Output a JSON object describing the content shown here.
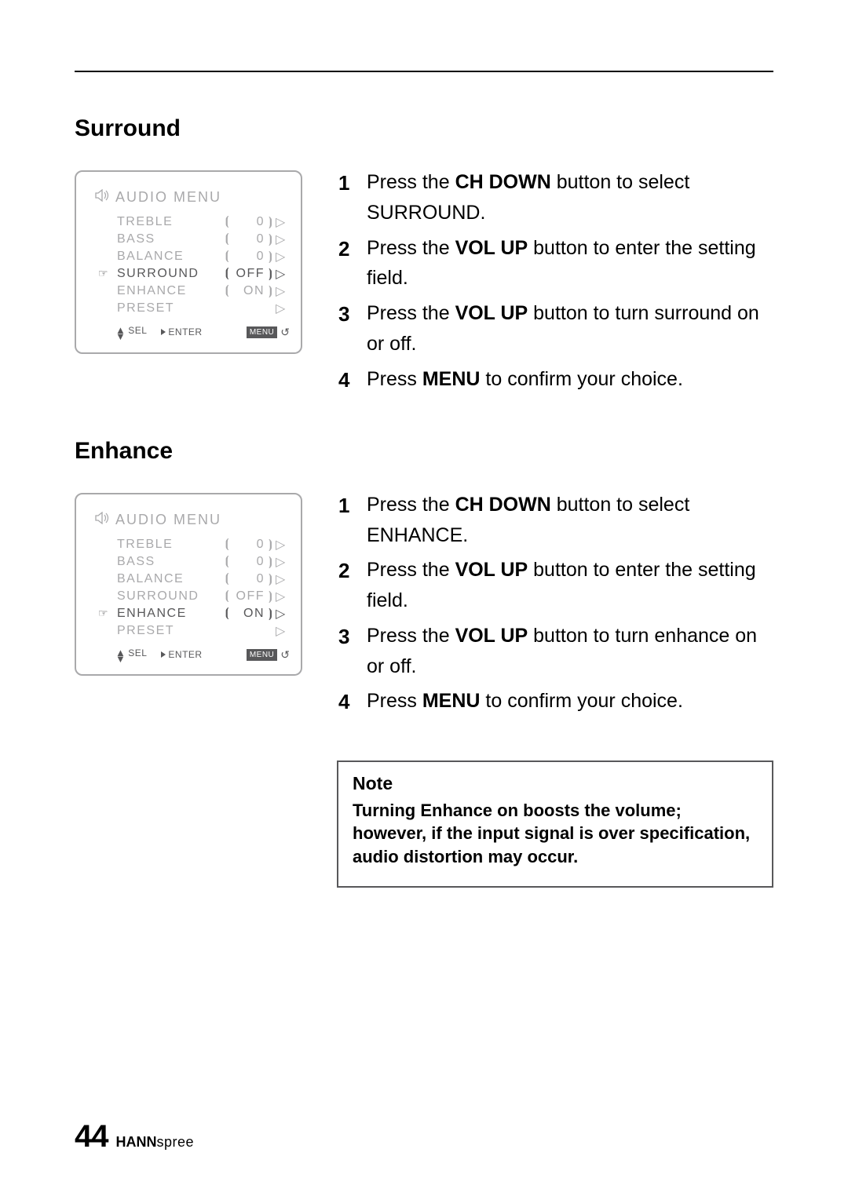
{
  "page": {
    "number": "44",
    "brand_bold": "HANN",
    "brand_light": "spree"
  },
  "colors": {
    "text": "#000000",
    "muted": "#a9a9ab",
    "dark": "#58585a",
    "menu_chip_bg": "#58585a",
    "menu_chip_fg": "#ffffff",
    "box_border": "#a9a9ab",
    "note_border": "#58585a",
    "bg": "#ffffff"
  },
  "surround": {
    "title": "Surround",
    "osd": {
      "title": "AUDIO  MENU",
      "rows": [
        {
          "label": "TREBLE",
          "value": "0",
          "active": false,
          "pointer": false,
          "showValue": true
        },
        {
          "label": "BASS",
          "value": "0",
          "active": false,
          "pointer": false,
          "showValue": true
        },
        {
          "label": "BALANCE",
          "value": "0",
          "active": false,
          "pointer": false,
          "showValue": true
        },
        {
          "label": "SURROUND",
          "value": "OFF",
          "active": true,
          "pointer": true,
          "showValue": true
        },
        {
          "label": "ENHANCE",
          "value": "ON",
          "active": false,
          "pointer": false,
          "showValue": true
        },
        {
          "label": "PRESET",
          "value": "",
          "active": false,
          "pointer": false,
          "showValue": false
        }
      ],
      "footer": {
        "sel": "SEL",
        "enter": "ENTER",
        "menu": "MENU"
      }
    },
    "steps": [
      {
        "n": "1",
        "pre": "Press the ",
        "bold": "CH DOWN",
        "post": " button to select SURROUND."
      },
      {
        "n": "2",
        "pre": "Press the ",
        "bold": "VOL UP",
        "post": " button to enter the setting field."
      },
      {
        "n": "3",
        "pre": "Press the ",
        "bold": "VOL UP",
        "post": " button to turn surround on or off."
      },
      {
        "n": "4",
        "pre": "Press ",
        "bold": "MENU",
        "post": " to confirm your choice."
      }
    ]
  },
  "enhance": {
    "title": "Enhance",
    "osd": {
      "title": "AUDIO  MENU",
      "rows": [
        {
          "label": "TREBLE",
          "value": "0",
          "active": false,
          "pointer": false,
          "showValue": true
        },
        {
          "label": "BASS",
          "value": "0",
          "active": false,
          "pointer": false,
          "showValue": true
        },
        {
          "label": "BALANCE",
          "value": "0",
          "active": false,
          "pointer": false,
          "showValue": true
        },
        {
          "label": "SURROUND",
          "value": "OFF",
          "active": false,
          "pointer": false,
          "showValue": true
        },
        {
          "label": "ENHANCE",
          "value": "ON",
          "active": true,
          "pointer": true,
          "showValue": true
        },
        {
          "label": "PRESET",
          "value": "",
          "active": false,
          "pointer": false,
          "showValue": false
        }
      ],
      "footer": {
        "sel": "SEL",
        "enter": "ENTER",
        "menu": "MENU"
      }
    },
    "steps": [
      {
        "n": "1",
        "pre": "Press the ",
        "bold": "CH DOWN",
        "post": " button to select ENHANCE."
      },
      {
        "n": "2",
        "pre": "Press the ",
        "bold": "VOL UP",
        "post": " button to enter the setting field."
      },
      {
        "n": "3",
        "pre": "Press the ",
        "bold": "VOL UP",
        "post": " button to turn enhance on or off."
      },
      {
        "n": "4",
        "pre": "Press ",
        "bold": "MENU",
        "post": " to confirm your choice."
      }
    ],
    "note": {
      "title": "Note",
      "body": "Turning Enhance on boosts the volume; however, if the input signal is over specification, audio distortion may occur."
    }
  }
}
